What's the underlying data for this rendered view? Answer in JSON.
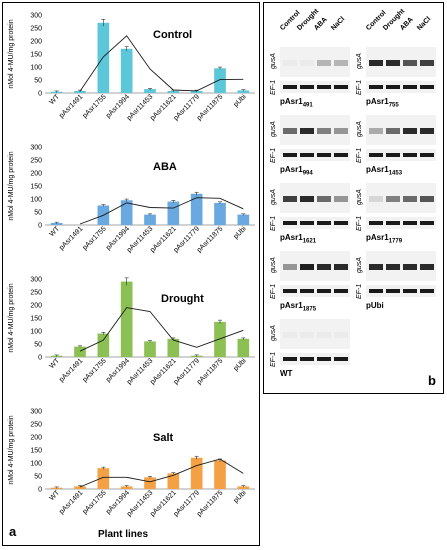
{
  "colors": {
    "control": "#5bc7d9",
    "aba": "#6aa8e0",
    "drought": "#8cc054",
    "salt": "#f4a145",
    "trend": "#1a1a1a",
    "gel_bg": "#f2f2f2",
    "band_dark": "#1a1a1a"
  },
  "panel_a": {
    "letter": "a",
    "x_axis_title": "Plant lines",
    "y_axis_label": "nMol 4-MU/mg protein"
  },
  "panel_b": {
    "letter": "b",
    "lane_headers": [
      "Control",
      "Drought",
      "ABA",
      "NaCl"
    ],
    "row_labels": {
      "gus": "gusA",
      "ef": "EF-1"
    },
    "gels": [
      {
        "name": "pAsr1",
        "sub": "491"
      },
      {
        "name": "pAsr1",
        "sub": "755"
      },
      {
        "name": "pAsr1",
        "sub": "994"
      },
      {
        "name": "pAsr1",
        "sub": "1453"
      },
      {
        "name": "pAsr1",
        "sub": "1621"
      },
      {
        "name": "pAsr1",
        "sub": "1779"
      },
      {
        "name": "pAsr1",
        "sub": "1875"
      },
      {
        "name": "pUbi",
        "sub": ""
      },
      {
        "name": "WT",
        "sub": ""
      }
    ]
  },
  "chart_data": [
    {
      "type": "bar",
      "title": "Control",
      "ylabel": "nMol 4-MU/mg protein",
      "categories": [
        "WT",
        "pAsr1491",
        "pAsr1755",
        "pAsr1994",
        "pAsr11453",
        "pAsr11621",
        "pAsr11779",
        "pAsr11875",
        "pUbi"
      ],
      "values": [
        5,
        8,
        270,
        170,
        15,
        8,
        8,
        95,
        10
      ],
      "ylim": [
        0,
        300
      ],
      "yticks": [
        0,
        50,
        100,
        150,
        200,
        250,
        300
      ],
      "trend": true
    },
    {
      "type": "bar",
      "title": "ABA",
      "ylabel": "nMol 4-MU/mg protein",
      "categories": [
        "WT",
        "pAsr1491",
        "pAsr1755",
        "pAsr1994",
        "pAsr11453",
        "pAsr11621",
        "pAsr11779",
        "pAsr11875",
        "pUbi"
      ],
      "values": [
        8,
        0,
        75,
        95,
        40,
        90,
        120,
        85,
        40
      ],
      "ylim": [
        0,
        300
      ],
      "yticks": [
        0,
        50,
        100,
        150,
        200,
        250,
        300
      ],
      "trend": true
    },
    {
      "type": "bar",
      "title": "Drought",
      "ylabel": "nMol 4-MU/mg protein",
      "categories": [
        "WT",
        "pAsr1491",
        "pAsr1755",
        "pAsr1994",
        "pAsr11453",
        "pAsr11621",
        "pAsr11779",
        "pAsr11875",
        "pUbi"
      ],
      "values": [
        5,
        40,
        90,
        290,
        60,
        70,
        5,
        135,
        70
      ],
      "ylim": [
        0,
        300
      ],
      "yticks": [
        0,
        50,
        100,
        150,
        200,
        250,
        300
      ],
      "trend": true
    },
    {
      "type": "bar",
      "title": "Salt",
      "ylabel": "nMol 4-MU/mg protein",
      "categories": [
        "WT",
        "pAsr1491",
        "pAsr1755",
        "pAsr1994",
        "pAsr11453",
        "pAsr11621",
        "pAsr11779",
        "pAsr11875",
        "pUbi"
      ],
      "values": [
        5,
        10,
        80,
        10,
        45,
        60,
        120,
        110,
        10
      ],
      "ylim": [
        0,
        300
      ],
      "yticks": [
        0,
        50,
        100,
        150,
        200,
        250,
        300
      ],
      "trend": true
    }
  ]
}
